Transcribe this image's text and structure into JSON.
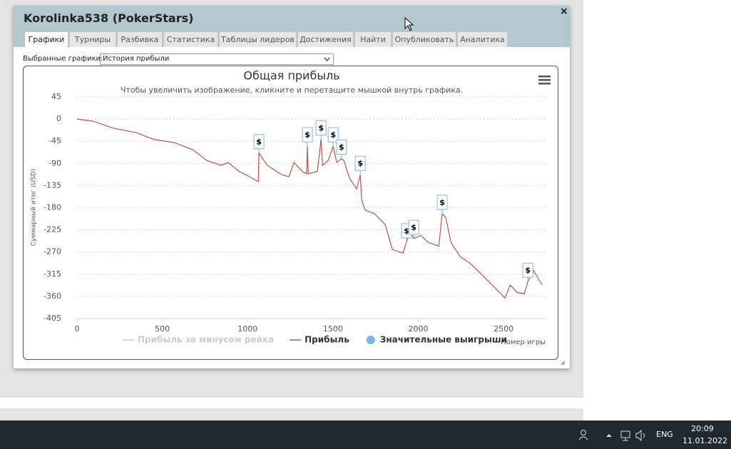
{
  "window": {
    "title": "Korolinka538 (PokerStars)",
    "close": "×"
  },
  "tabs": [
    "Графики",
    "Турниры",
    "Разбивка",
    "Статистика",
    "Таблицы лидеров",
    "Достижения",
    "Найти",
    "Опубликовать",
    "Аналитика"
  ],
  "selector": {
    "label": "Выбранные графики:",
    "value": "История прибыли"
  },
  "chart_data": {
    "type": "line",
    "title": "Общая прибыль",
    "subtitle": "Чтобы увеличить изображение, кликните и перетащите мышкой внутрь графика.",
    "y_label": "Суммарный итог (USD)",
    "x_label": "Номер игры",
    "xlim": [
      0,
      2750
    ],
    "ylim": [
      -405,
      45
    ],
    "xticks": [
      0,
      500,
      1000,
      1500,
      2000,
      2500
    ],
    "yticks": [
      45,
      0,
      -45,
      -90,
      -135,
      -180,
      -225,
      -270,
      -315,
      -360,
      -405
    ],
    "grid": true,
    "x": [
      0,
      92,
      217,
      343,
      447,
      573,
      677,
      761,
      845,
      886,
      949,
      1012,
      1062,
      1066,
      1116,
      1200,
      1242,
      1271,
      1326,
      1346,
      1350,
      1355,
      1409,
      1430,
      1439,
      1472,
      1501,
      1522,
      1550,
      1564,
      1597,
      1639,
      1660,
      1668,
      1689,
      1743,
      1806,
      1848,
      1910,
      1931,
      1952,
      1973,
      2015,
      2057,
      2120,
      2140,
      2161,
      2191,
      2245,
      2308,
      2370,
      2433,
      2508,
      2538,
      2580,
      2621,
      2642,
      2676,
      2726
    ],
    "series": [
      {
        "name": "Прибыль за минусом рейка",
        "color": "#cccccc",
        "visible": false
      },
      {
        "name": "Прибыль",
        "color": "#c0504d",
        "visible": true,
        "values": [
          0,
          -4,
          -19,
          -27,
          -41,
          -48,
          -62,
          -84,
          -94,
          -88,
          -106,
          -117,
          -127,
          -69,
          -94,
          -113,
          -117,
          -88,
          -108,
          -111,
          -55,
          -111,
          -106,
          -41,
          -94,
          -84,
          -55,
          -88,
          -80,
          -84,
          -120,
          -142,
          -113,
          -164,
          -185,
          -192,
          -214,
          -265,
          -272,
          -250,
          -229,
          -243,
          -236,
          -250,
          -258,
          -192,
          -200,
          -250,
          -279,
          -294,
          -315,
          -337,
          -363,
          -337,
          -352,
          -355,
          -330,
          -308,
          -337
        ]
      },
      {
        "name": "Значительные выигрыши",
        "color": "#7cb5ec",
        "visible": true,
        "flag": "$",
        "x": [
          1066,
          1350,
          1430,
          1501,
          1550,
          1660,
          1931,
          1973,
          2140,
          2642
        ],
        "values": [
          -69,
          -55,
          -41,
          -55,
          -80,
          -113,
          -250,
          -243,
          -192,
          -330
        ]
      }
    ]
  },
  "taskbar": {
    "language": "ENG",
    "time": "20:09",
    "date": "11.01.2022"
  }
}
